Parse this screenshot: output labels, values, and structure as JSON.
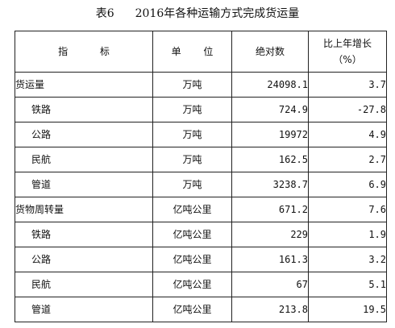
{
  "table": {
    "title_number": "表6",
    "title_text": "2016年各种运输方式完成货运量",
    "headers": {
      "indicator": "指  标",
      "unit": "单 位",
      "absolute": "绝对数",
      "growth_line1": "比上年增长",
      "growth_line2": "（%）"
    },
    "rows": [
      {
        "name": "货运量",
        "unit": "万吨",
        "absolute": "24098.1",
        "growth": "3.7"
      },
      {
        "name": "铁路",
        "unit": "万吨",
        "absolute": "724.9",
        "growth": "-27.8"
      },
      {
        "name": "公路",
        "unit": "万吨",
        "absolute": "19972",
        "growth": "4.9"
      },
      {
        "name": "民航",
        "unit": "万吨",
        "absolute": "162.5",
        "growth": "2.7"
      },
      {
        "name": "管道",
        "unit": "万吨",
        "absolute": "3238.7",
        "growth": "6.9"
      },
      {
        "name": "货物周转量",
        "unit": "亿吨公里",
        "absolute": "671.2",
        "growth": "7.6"
      },
      {
        "name": "铁路",
        "unit": "亿吨公里",
        "absolute": "229",
        "growth": "1.9"
      },
      {
        "name": "公路",
        "unit": "亿吨公里",
        "absolute": "161.3",
        "growth": "3.2"
      },
      {
        "name": "民航",
        "unit": "亿吨公里",
        "absolute": "67",
        "growth": "5.1"
      },
      {
        "name": "管道",
        "unit": "亿吨公里",
        "absolute": "213.8",
        "growth": "19.5"
      }
    ]
  }
}
